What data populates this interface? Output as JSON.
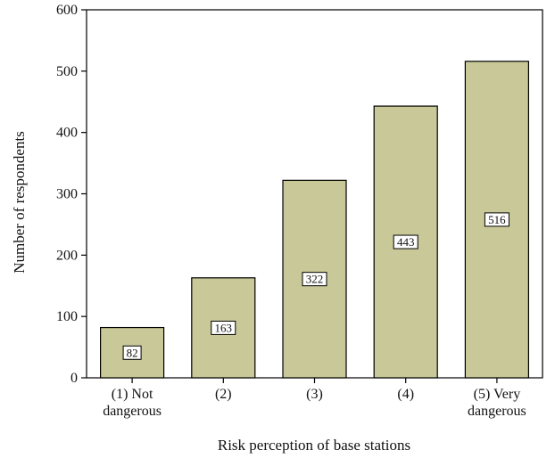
{
  "chart_data": {
    "type": "bar",
    "categories": [
      [
        "(1) Not",
        "dangerous"
      ],
      [
        "(2)"
      ],
      [
        "(3)"
      ],
      [
        "(4)"
      ],
      [
        "(5) Very",
        "dangerous"
      ]
    ],
    "values": [
      82,
      163,
      322,
      443,
      516
    ],
    "data_labels": [
      "82",
      "163",
      "322",
      "443",
      "516"
    ],
    "xlabel": "Risk perception of base stations",
    "ylabel": "Number of respondents",
    "ylim": [
      0,
      600
    ],
    "yticks": [
      0,
      100,
      200,
      300,
      400,
      500,
      600
    ],
    "grid": false,
    "legend": "none",
    "colors": {
      "bar_fill": "#c8c898",
      "bar_stroke": "#000000",
      "label_box_fill": "#ffffff",
      "axis": "#000000"
    }
  }
}
